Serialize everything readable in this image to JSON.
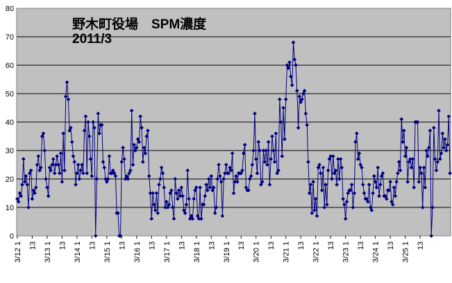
{
  "chart_data": {
    "type": "line",
    "title": "野木町役場　SPM濃度",
    "subtitle": "2011/3",
    "xlabel": "",
    "ylabel": "",
    "ylim": [
      0,
      80
    ],
    "yticks": [
      0,
      10,
      20,
      30,
      40,
      50,
      60,
      70,
      80
    ],
    "grid": true,
    "x_tick_labels": [
      "3/12 1",
      "13",
      "3/13 1",
      "13",
      "3/14 1",
      "13",
      "3/15 1",
      "13",
      "3/16 1",
      "13",
      "3/17 1",
      "13",
      "3/18 1",
      "13",
      "3/19 1",
      "13",
      "3/20 1",
      "13",
      "3/21 1",
      "13",
      "3/22 1",
      "13",
      "3/23 1",
      "13",
      "3/24 1",
      "13",
      "3/25 1",
      "13"
    ],
    "colors": {
      "series": "#000080",
      "plot_bg": "#c0c0c0",
      "grid": "#000000"
    },
    "series": [
      {
        "values": [
          13,
          12,
          15,
          14,
          18,
          27,
          19,
          21,
          18,
          10,
          22,
          23,
          13,
          16,
          15,
          17,
          25,
          28,
          23,
          24,
          35,
          36,
          30,
          20,
          17,
          14,
          24,
          23,
          25,
          27,
          22,
          25,
          28,
          25,
          22,
          29,
          19,
          36,
          23,
          49,
          54,
          48,
          37,
          38,
          33,
          28,
          26,
          18,
          22,
          25,
          20,
          23,
          25,
          22,
          37,
          42,
          22,
          40,
          35,
          27,
          21,
          40,
          38,
          0,
          20,
          43,
          36,
          39,
          39,
          26,
          24,
          20,
          19,
          20,
          28,
          22,
          22,
          23,
          22,
          21,
          8,
          8,
          0,
          0,
          26,
          31,
          27,
          20,
          21,
          20,
          22,
          23,
          44,
          25,
          32,
          30,
          31,
          34,
          33,
          42,
          38,
          26,
          31,
          29,
          35,
          37,
          21,
          15,
          6,
          15,
          11,
          9,
          15,
          8,
          18,
          20,
          24,
          22,
          17,
          10,
          12,
          10,
          11,
          15,
          16,
          10,
          6,
          20,
          15,
          13,
          16,
          14,
          17,
          14,
          9,
          8,
          11,
          23,
          13,
          6,
          7,
          6,
          13,
          16,
          17,
          7,
          6,
          17,
          6,
          11,
          11,
          14,
          18,
          16,
          20,
          17,
          21,
          16,
          17,
          8,
          10,
          20,
          25,
          21,
          19,
          7,
          20,
          22,
          25,
          22,
          22,
          24,
          23,
          29,
          15,
          19,
          21,
          19,
          22,
          22,
          22,
          23,
          29,
          32,
          17,
          16,
          16,
          20,
          21,
          25,
          30,
          43,
          27,
          22,
          33,
          30,
          18,
          19,
          30,
          26,
          30,
          25,
          33,
          18,
          27,
          35,
          30,
          26,
          36,
          22,
          23,
          48,
          40,
          28,
          45,
          34,
          48,
          60,
          59,
          61,
          56,
          53,
          68,
          62,
          60,
          51,
          38,
          49,
          47,
          48,
          50,
          51,
          43,
          39,
          26,
          15,
          18,
          8,
          19,
          9,
          13,
          7,
          24,
          25,
          22,
          16,
          24,
          10,
          18,
          11,
          23,
          27,
          28,
          20,
          28,
          22,
          23,
          18,
          27,
          20,
          27,
          24,
          13,
          11,
          6,
          12,
          15,
          16,
          16,
          18,
          10,
          15,
          33,
          36,
          27,
          29,
          25,
          24,
          18,
          15,
          13,
          13,
          12,
          18,
          10,
          9,
          15,
          21,
          19,
          17,
          24,
          14,
          18,
          21,
          22,
          14,
          14,
          13,
          16,
          16,
          19,
          12,
          11,
          17,
          14,
          19,
          22,
          26,
          23,
          41,
          33,
          37,
          28,
          31,
          19,
          26,
          27,
          24,
          27,
          17,
          40,
          40,
          40,
          19,
          24,
          22,
          10,
          24,
          17,
          30,
          28,
          31,
          37,
          0,
          10,
          38,
          27,
          23,
          26,
          44,
          27,
          29,
          36,
          31,
          34,
          30,
          32,
          42,
          22
        ]
      }
    ]
  }
}
